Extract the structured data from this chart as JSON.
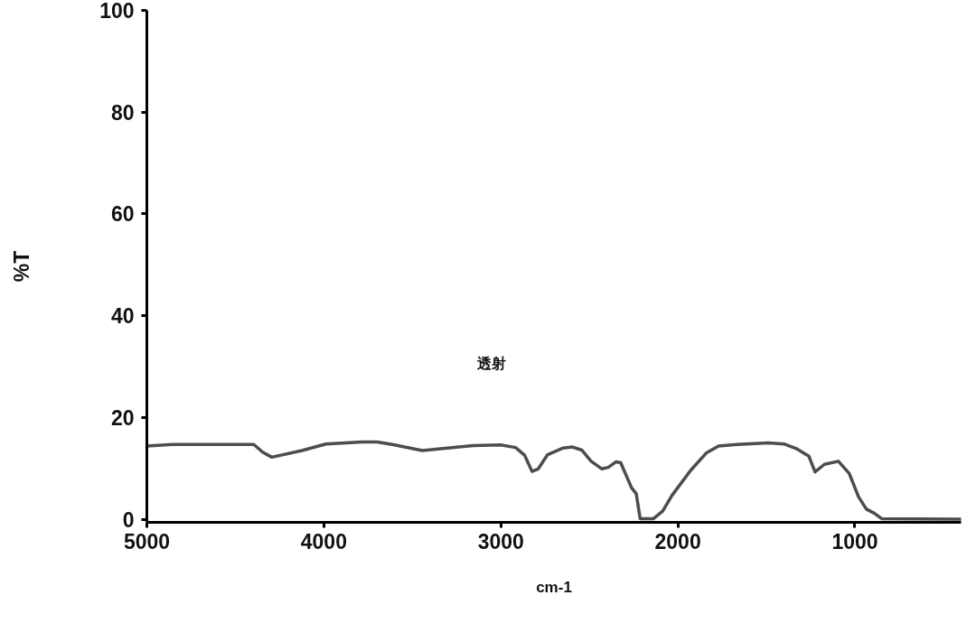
{
  "chart_data": {
    "type": "line",
    "xlabel": "cm-1",
    "ylabel": "%T",
    "annotations": [
      "透射"
    ],
    "xlim": [
      5000,
      400
    ],
    "ylim": [
      -0.6,
      100
    ],
    "xticks": [
      5000,
      4000,
      3000,
      2000,
      1000
    ],
    "yticks": [
      0,
      20,
      40,
      60,
      80,
      100
    ],
    "series": [
      {
        "color": "#4d4d4d",
        "x": [
          5000,
          4855,
          4396,
          4346,
          4294,
          4124,
          3988,
          3784,
          3699,
          3614,
          3444,
          3274,
          3155,
          3002,
          2917,
          2866,
          2824,
          2789,
          2736,
          2648,
          2595,
          2543,
          2490,
          2429,
          2393,
          2349,
          2323,
          2262,
          2235,
          2213,
          2139,
          2086,
          2033,
          1928,
          1840,
          1770,
          1664,
          1489,
          1401,
          1331,
          1260,
          1225,
          1172,
          1093,
          1032,
          979,
          935,
          891,
          847,
          400
        ],
        "values": [
          14.4,
          14.7,
          14.7,
          13.2,
          12.2,
          13.5,
          14.8,
          15.2,
          15.2,
          14.7,
          13.5,
          14.1,
          14.5,
          14.6,
          14.1,
          12.6,
          9.4,
          9.9,
          12.7,
          14.0,
          14.2,
          13.6,
          11.4,
          9.9,
          10.2,
          11.3,
          11.1,
          6.2,
          5.0,
          0.1,
          0.1,
          1.6,
          4.7,
          9.6,
          13.0,
          14.4,
          14.7,
          15.0,
          14.8,
          13.9,
          12.4,
          9.3,
          10.8,
          11.4,
          9.0,
          4.4,
          2.0,
          1.2,
          0.1,
          0
        ]
      }
    ]
  }
}
